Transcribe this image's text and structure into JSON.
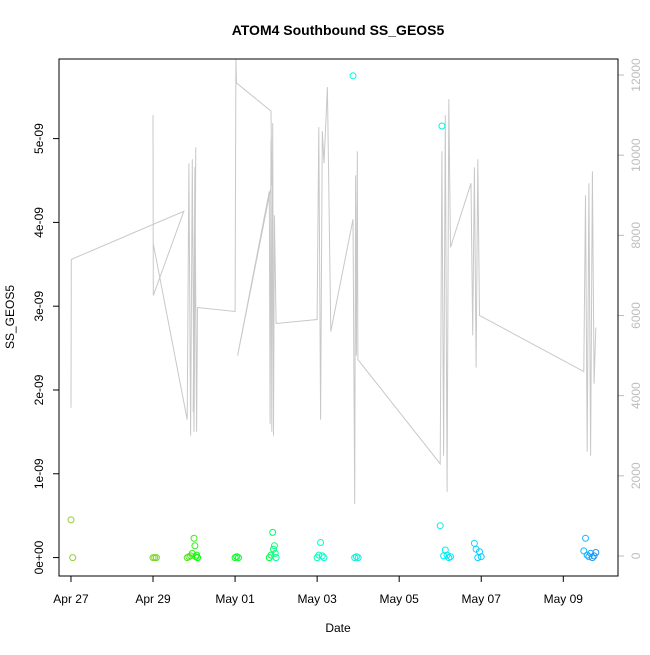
{
  "chart_data": {
    "type": "scatter",
    "title": "ATOM4 Southbound SS_GEOS5",
    "xlabel": "Date",
    "ylabel": "SS_GEOS5",
    "xlim": [
      "2016-04-26 17:00",
      "2016-05-10 08:00"
    ],
    "ylim": [
      -2.2e-10,
      5.95e-09
    ],
    "y2lim": [
      -500,
      12400
    ],
    "x_ticks": [
      {
        "label": "Apr 27",
        "date": "2016-04-27"
      },
      {
        "label": "Apr 29",
        "date": "2016-04-29"
      },
      {
        "label": "May 01",
        "date": "2016-05-01"
      },
      {
        "label": "May 03",
        "date": "2016-05-03"
      },
      {
        "label": "May 05",
        "date": "2016-05-05"
      },
      {
        "label": "May 07",
        "date": "2016-05-07"
      },
      {
        "label": "May 09",
        "date": "2016-05-09"
      }
    ],
    "y_ticks": [
      {
        "label": "0e+00",
        "value": 0
      },
      {
        "label": "1e-09",
        "value": 1e-09
      },
      {
        "label": "2e-09",
        "value": 2e-09
      },
      {
        "label": "3e-09",
        "value": 3e-09
      },
      {
        "label": "4e-09",
        "value": 4e-09
      },
      {
        "label": "5e-09",
        "value": 5e-09
      }
    ],
    "y2_ticks": [
      {
        "label": "0",
        "value": 0
      },
      {
        "label": "2000",
        "value": 2000
      },
      {
        "label": "4000",
        "value": 4000
      },
      {
        "label": "6000",
        "value": 6000
      },
      {
        "label": "8000",
        "value": 8000
      },
      {
        "label": "10000",
        "value": 10000
      },
      {
        "label": "12000",
        "value": 12000
      }
    ],
    "grid": false,
    "legend": "none",
    "colors": {
      "altitude_line": "#c8c8c8",
      "axis_secondary": "#bdbdbd",
      "axis": "#000000",
      "point_gradient": [
        "#9acd32",
        "#00ff00",
        "#00ffcc",
        "#00e5ff",
        "#1e90ff"
      ]
    },
    "altitude_line": [
      [
        "2016-04-27 00:00",
        3700
      ],
      [
        "2016-04-27 00:10",
        7400
      ],
      [
        "2016-04-29 18:00",
        8600
      ],
      [
        "2016-04-29 00:10",
        6500
      ],
      [
        "2016-04-29 00:00",
        11000
      ],
      [
        "2016-04-29 00:05",
        7800
      ],
      [
        "2016-04-29 20:00",
        3400
      ],
      [
        "2016-04-29 21:00",
        9800
      ],
      [
        "2016-04-29 22:00",
        3000
      ],
      [
        "2016-04-29 23:00",
        9900
      ],
      [
        "2016-04-30 00:00",
        3100
      ],
      [
        "2016-04-30 01:00",
        10200
      ],
      [
        "2016-04-29 23:30",
        3600
      ],
      [
        "2016-04-30 00:30",
        9700
      ],
      [
        "2016-04-30 01:30",
        3100
      ],
      [
        "2016-04-30 02:00",
        6200
      ],
      [
        "2016-05-01 00:00",
        6100
      ],
      [
        "2016-05-01 00:30",
        12400
      ],
      [
        "2016-05-01 00:50",
        11800
      ],
      [
        "2016-05-01 21:00",
        11100
      ],
      [
        "2016-05-01 21:30",
        9300
      ],
      [
        "2016-05-01 01:30",
        5000
      ],
      [
        "2016-05-01 20:00",
        9100
      ],
      [
        "2016-05-01 20:30",
        3300
      ],
      [
        "2016-05-01 21:00",
        10400
      ],
      [
        "2016-05-01 21:30",
        3100
      ],
      [
        "2016-05-01 22:00",
        10800
      ],
      [
        "2016-05-01 22:30",
        3000
      ],
      [
        "2016-05-01 23:00",
        8500
      ],
      [
        "2016-05-02 00:00",
        5800
      ],
      [
        "2016-05-03 00:00",
        5900
      ],
      [
        "2016-05-03 01:00",
        10700
      ],
      [
        "2016-05-03 02:00",
        3400
      ],
      [
        "2016-05-03 03:00",
        10600
      ],
      [
        "2016-05-03 04:00",
        9800
      ],
      [
        "2016-05-03 06:00",
        11700
      ],
      [
        "2016-05-03 08:00",
        5600
      ],
      [
        "2016-05-03 21:00",
        8400
      ],
      [
        "2016-05-03 22:00",
        1300
      ],
      [
        "2016-05-03 22:30",
        9500
      ],
      [
        "2016-05-03 23:00",
        5000
      ],
      [
        "2016-05-03 23:30",
        10100
      ],
      [
        "2016-05-03 23:50",
        4900
      ],
      [
        "2016-05-06 00:00",
        2300
      ],
      [
        "2016-05-06 01:00",
        10100
      ],
      [
        "2016-05-06 02:00",
        2500
      ],
      [
        "2016-05-06 03:00",
        11000
      ],
      [
        "2016-05-06 04:00",
        1600
      ],
      [
        "2016-05-06 05:00",
        11400
      ],
      [
        "2016-05-06 06:00",
        7700
      ],
      [
        "2016-05-06 18:00",
        9300
      ],
      [
        "2016-05-06 19:00",
        5500
      ],
      [
        "2016-05-06 20:00",
        9700
      ],
      [
        "2016-05-06 21:00",
        4700
      ],
      [
        "2016-05-06 22:00",
        9900
      ],
      [
        "2016-05-06 23:00",
        6000
      ],
      [
        "2016-05-09 12:00",
        4600
      ],
      [
        "2016-05-09 13:00",
        9000
      ],
      [
        "2016-05-09 14:00",
        2600
      ],
      [
        "2016-05-09 15:00",
        9300
      ],
      [
        "2016-05-09 16:00",
        2500
      ],
      [
        "2016-05-09 17:00",
        9600
      ],
      [
        "2016-05-09 18:00",
        4300
      ],
      [
        "2016-05-09 19:00",
        5700
      ]
    ],
    "points": [
      {
        "x": "2016-04-27 00:00",
        "y": 4.5e-10
      },
      {
        "x": "2016-04-27 01:00",
        "y": 0
      },
      {
        "x": "2016-04-29 00:00",
        "y": 0
      },
      {
        "x": "2016-04-29 01:00",
        "y": 0
      },
      {
        "x": "2016-04-29 02:00",
        "y": 0
      },
      {
        "x": "2016-04-29 20:00",
        "y": 0
      },
      {
        "x": "2016-04-29 21:00",
        "y": 1e-11
      },
      {
        "x": "2016-04-29 22:00",
        "y": 2e-11
      },
      {
        "x": "2016-04-29 23:00",
        "y": 5e-11
      },
      {
        "x": "2016-04-30 00:00",
        "y": 2.3e-10
      },
      {
        "x": "2016-04-30 00:30",
        "y": 1.4e-10
      },
      {
        "x": "2016-04-30 01:00",
        "y": 1e-11
      },
      {
        "x": "2016-04-30 01:30",
        "y": 3e-11
      },
      {
        "x": "2016-04-30 02:00",
        "y": 0
      },
      {
        "x": "2016-05-01 00:00",
        "y": 0
      },
      {
        "x": "2016-05-01 01:00",
        "y": 1e-11
      },
      {
        "x": "2016-05-01 02:00",
        "y": 0
      },
      {
        "x": "2016-05-01 20:00",
        "y": 0
      },
      {
        "x": "2016-05-01 21:00",
        "y": 3e-11
      },
      {
        "x": "2016-05-01 22:00",
        "y": 3e-10
      },
      {
        "x": "2016-05-01 22:30",
        "y": 1e-10
      },
      {
        "x": "2016-05-01 23:00",
        "y": 1.4e-10
      },
      {
        "x": "2016-05-01 23:30",
        "y": 5e-11
      },
      {
        "x": "2016-05-02 00:00",
        "y": 0
      },
      {
        "x": "2016-05-03 00:00",
        "y": 0
      },
      {
        "x": "2016-05-03 01:00",
        "y": 3e-11
      },
      {
        "x": "2016-05-03 02:00",
        "y": 1.8e-10
      },
      {
        "x": "2016-05-03 03:00",
        "y": 2e-11
      },
      {
        "x": "2016-05-03 04:00",
        "y": 0
      },
      {
        "x": "2016-05-03 21:00",
        "y": 5.75e-09
      },
      {
        "x": "2016-05-03 22:00",
        "y": 0
      },
      {
        "x": "2016-05-03 23:00",
        "y": 1e-11
      },
      {
        "x": "2016-05-04 00:00",
        "y": 0
      },
      {
        "x": "2016-05-06 00:00",
        "y": 3.8e-10
      },
      {
        "x": "2016-05-06 01:00",
        "y": 5.15e-09
      },
      {
        "x": "2016-05-06 02:00",
        "y": 2e-11
      },
      {
        "x": "2016-05-06 03:00",
        "y": 9e-11
      },
      {
        "x": "2016-05-06 04:00",
        "y": 3e-11
      },
      {
        "x": "2016-05-06 05:00",
        "y": 0
      },
      {
        "x": "2016-05-06 06:00",
        "y": 1e-11
      },
      {
        "x": "2016-05-06 20:00",
        "y": 1.7e-10
      },
      {
        "x": "2016-05-06 21:00",
        "y": 1e-10
      },
      {
        "x": "2016-05-06 22:00",
        "y": 0
      },
      {
        "x": "2016-05-06 23:00",
        "y": 7e-11
      },
      {
        "x": "2016-05-07 00:00",
        "y": 1e-11
      },
      {
        "x": "2016-05-09 12:00",
        "y": 8e-11
      },
      {
        "x": "2016-05-09 13:00",
        "y": 2.3e-10
      },
      {
        "x": "2016-05-09 14:00",
        "y": 3e-11
      },
      {
        "x": "2016-05-09 15:00",
        "y": 1e-11
      },
      {
        "x": "2016-05-09 16:00",
        "y": 5e-11
      },
      {
        "x": "2016-05-09 17:00",
        "y": 0
      },
      {
        "x": "2016-05-09 18:00",
        "y": 2e-11
      },
      {
        "x": "2016-05-09 19:00",
        "y": 6e-11
      }
    ]
  }
}
